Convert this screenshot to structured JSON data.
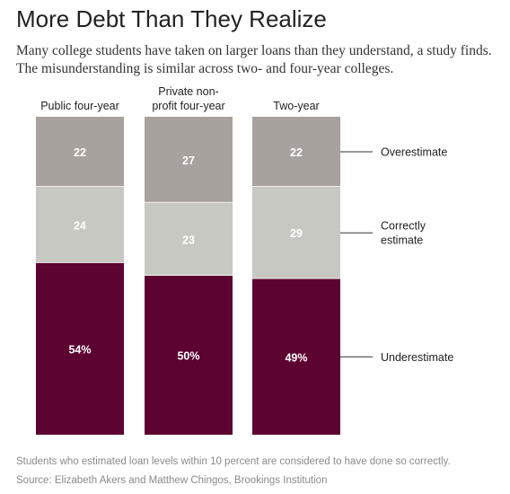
{
  "title": "More Debt Than They Realize",
  "subtitle_lines": [
    "Many college students have taken on larger loans than they understand, a study finds.",
    "The misunderstanding is similar across two- and four-year colleges."
  ],
  "footnote": "Students who estimated loan levels within 10 percent are considered to have done so correctly.",
  "source": "Source: Elizabeth Akers and Matthew Chingos, Brookings Institution",
  "colors": {
    "Overestimate": "#a8a29f",
    "Correctly estimate": "#c8c8c2",
    "Underestimate": "#5c0331"
  },
  "chart_data": {
    "type": "bar",
    "stacked": true,
    "unit": "%",
    "categories": [
      {
        "lines": [
          "Public four-year"
        ]
      },
      {
        "lines": [
          "Private non-",
          "profit four-year"
        ]
      },
      {
        "lines": [
          "Two-year"
        ]
      }
    ],
    "series": [
      {
        "name": "Overestimate",
        "legend_lines": [
          "Overestimate"
        ],
        "values": [
          22,
          27,
          22
        ],
        "labels": [
          "22",
          "27",
          "22"
        ]
      },
      {
        "name": "Correctly estimate",
        "legend_lines": [
          "Correctly",
          "estimate"
        ],
        "values": [
          24,
          23,
          29
        ],
        "labels": [
          "24",
          "23",
          "29"
        ]
      },
      {
        "name": "Underestimate",
        "legend_lines": [
          "Underestimate"
        ],
        "values": [
          54,
          50,
          49
        ],
        "labels": [
          "54%",
          "50%",
          "49%"
        ]
      }
    ],
    "ylim": [
      0,
      100
    ],
    "legend_position": "right"
  }
}
